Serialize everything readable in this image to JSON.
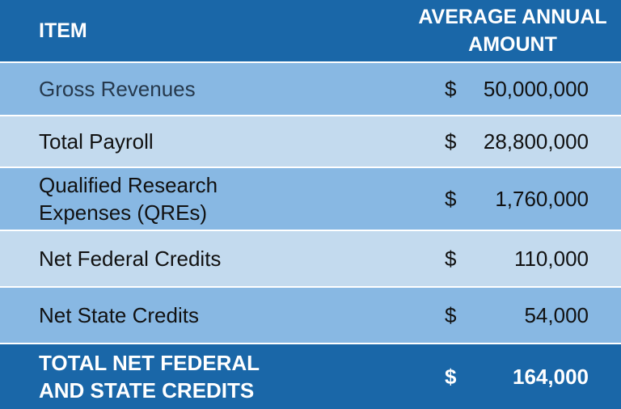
{
  "header": {
    "item": "ITEM",
    "amount": "AVERAGE ANNUAL AMOUNT"
  },
  "rows": [
    {
      "item": "Gross Revenues",
      "currency": "$",
      "amount": "50,000,000"
    },
    {
      "item": "Total Payroll",
      "currency": "$",
      "amount": "28,800,000"
    },
    {
      "item": "Qualified Research Expenses (QREs)",
      "currency": "$",
      "amount": "1,760,000"
    },
    {
      "item": "Net Federal Credits",
      "currency": "$",
      "amount": "110,000"
    },
    {
      "item": "Net State Credits",
      "currency": "$",
      "amount": "54,000"
    }
  ],
  "total": {
    "item": "TOTAL NET FEDERAL AND STATE CREDITS",
    "currency": "$",
    "amount": "164,000"
  },
  "colors": {
    "header_bg": "#1a67a8",
    "row_dark": "#88b8e3",
    "row_light": "#c3daee"
  }
}
